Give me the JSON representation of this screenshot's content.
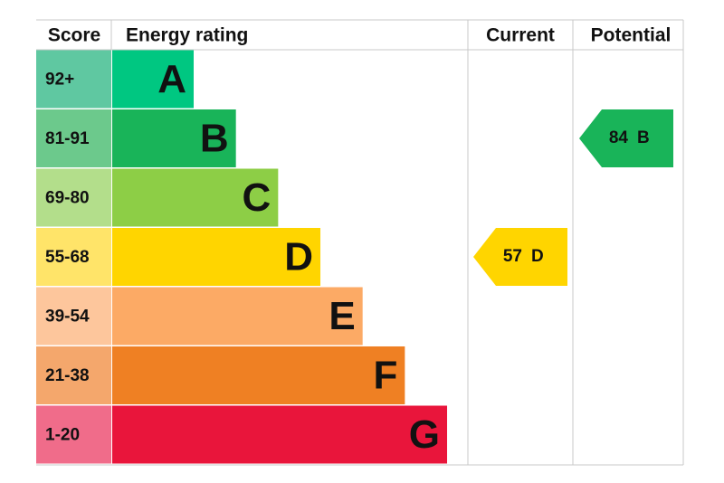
{
  "header": {
    "score": "Score",
    "rating": "Energy rating",
    "current": "Current",
    "potential": "Potential"
  },
  "bands": [
    {
      "score": "92+",
      "letter": "A",
      "color": "#00c781",
      "score_color": "#5fc8a1"
    },
    {
      "score": "81-91",
      "letter": "B",
      "color": "#19b459",
      "score_color": "#6cc98c"
    },
    {
      "score": "69-80",
      "letter": "C",
      "color": "#8dce46",
      "score_color": "#b3de8b"
    },
    {
      "score": "55-68",
      "letter": "D",
      "color": "#ffd500",
      "score_color": "#ffe469"
    },
    {
      "score": "39-54",
      "letter": "E",
      "color": "#fcaa65",
      "score_color": "#fdc69c"
    },
    {
      "score": "21-38",
      "letter": "F",
      "color": "#ef8023",
      "score_color": "#f4a76c"
    },
    {
      "score": "1-20",
      "letter": "G",
      "color": "#e9153b",
      "score_color": "#f06c8a"
    }
  ],
  "current": {
    "value": 57,
    "letter": "D",
    "color": "#ffd500"
  },
  "potential": {
    "value": 84,
    "letter": "B",
    "color": "#19b459"
  }
}
